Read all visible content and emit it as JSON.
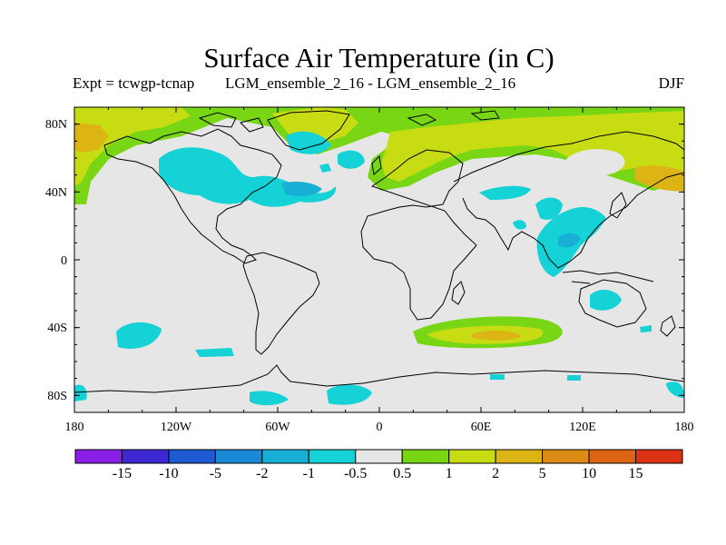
{
  "title": "Surface Air Temperature (in C)",
  "experiment": "Expt = tcwgp-tcnap",
  "comparison": "LGM_ensemble_2_16 - LGM_ensemble_2_16",
  "season": "DJF",
  "map": {
    "projection": "cylindrical equidistant",
    "background_color": "#e6e6e6",
    "lat_ticks": [
      "80N",
      "40N",
      "0",
      "40S",
      "80S"
    ],
    "lon_ticks": [
      "180",
      "120W",
      "60W",
      "0",
      "60E",
      "120E",
      "180"
    ],
    "lat_range": [
      -90,
      90
    ],
    "lon_range": [
      -180,
      180
    ]
  },
  "colorbar": {
    "labels": [
      "-15",
      "-10",
      "-5",
      "-2",
      "-1",
      "-0.5",
      "0.5",
      "1",
      "2",
      "5",
      "10",
      "15"
    ],
    "colors": [
      "#8a1ee6",
      "#3c28d2",
      "#1e5ad2",
      "#1a8ad8",
      "#18aed6",
      "#14d2d6",
      "#e6e6e6",
      "#78d614",
      "#c8dc14",
      "#dcb414",
      "#dc8c14",
      "#dc6414",
      "#dc3214"
    ]
  },
  "anomaly_regions": [
    {
      "name": "arctic-canada-warm",
      "category": "1 to 2",
      "color": "#c8dc14"
    },
    {
      "name": "north-america-cool",
      "category": "-1 to -0.5",
      "color": "#14d2d6"
    },
    {
      "name": "eurasia-warm",
      "category": "1 to 2",
      "color": "#c8dc14"
    },
    {
      "name": "east-asia-cool",
      "category": "-1 to -0.5",
      "color": "#14d2d6"
    },
    {
      "name": "southern-ocean-warm",
      "category": "2 to 5",
      "color": "#dcb414"
    },
    {
      "name": "antarctic-coast-cool",
      "category": "-1 to -0.5",
      "color": "#14d2d6"
    }
  ]
}
